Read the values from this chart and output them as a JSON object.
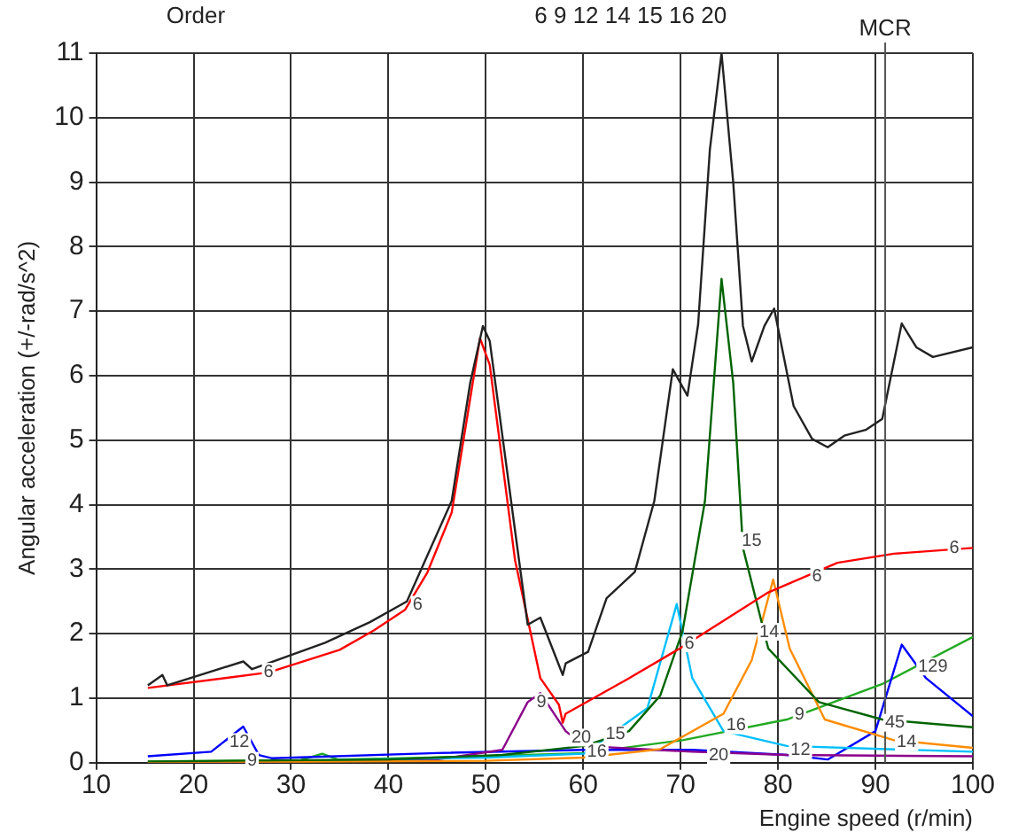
{
  "chart_data": {
    "type": "line",
    "xlabel": "Engine speed (r/min)",
    "ylabel": "Angular acceleration (+/-rad/s^2)",
    "xlim": [
      10,
      100
    ],
    "ylim": [
      0,
      11
    ],
    "xticks": [
      10,
      20,
      30,
      40,
      50,
      60,
      70,
      80,
      90,
      100
    ],
    "yticks": [
      0,
      1,
      2,
      3,
      4,
      5,
      6,
      7,
      8,
      9,
      10,
      11
    ],
    "grid": true,
    "legend": false,
    "marker": "none",
    "series": [
      {
        "color": "#222222",
        "x": [
          15.3,
          16.8,
          17.3,
          25.1,
          26.0,
          33.5,
          38.1,
          41.9,
          46.5,
          48.4,
          49.7,
          50.4,
          53.0,
          54.3,
          55.6,
          57.9,
          58.2,
          60.5,
          62.4,
          65.3,
          67.3,
          69.2,
          70.7,
          71.8,
          73.0,
          74.2,
          75.4,
          76.4,
          77.3,
          78.6,
          79.6,
          81.6,
          83.5,
          85.1,
          86.8,
          89.0,
          90.7,
          92.7,
          94.2,
          95.9,
          100
        ],
        "values": [
          1.2,
          1.36,
          1.2,
          1.57,
          1.45,
          1.86,
          2.18,
          2.5,
          4.06,
          5.89,
          6.77,
          6.54,
          3.6,
          2.14,
          2.25,
          1.36,
          1.54,
          1.72,
          2.55,
          2.96,
          4.06,
          6.1,
          5.69,
          6.8,
          9.5,
          11.0,
          9.0,
          6.77,
          6.22,
          6.77,
          7.04,
          5.53,
          5.02,
          4.89,
          5.07,
          5.16,
          5.33,
          6.81,
          6.44,
          6.29,
          6.44
        ]
      },
      {
        "color": "#ff0000",
        "x": [
          15.3,
          27.7,
          35,
          38.5,
          41.7,
          44,
          46.5,
          49.4,
          50.4,
          53.0,
          55.6,
          57.5,
          57.9,
          58.2,
          64.7,
          69.9,
          79.0,
          86.1,
          91.9,
          100
        ],
        "values": [
          1.16,
          1.4,
          1.75,
          2.05,
          2.37,
          2.95,
          3.88,
          6.58,
          6.17,
          3.14,
          1.31,
          0.9,
          0.62,
          0.76,
          1.31,
          1.77,
          2.64,
          3.1,
          3.24,
          3.33
        ]
      },
      {
        "color": "#006400",
        "x": [
          15.3,
          40,
          51.7,
          60.1,
          64.7,
          67.9,
          70.2,
          72.5,
          74.2,
          75.4,
          76.4,
          79.0,
          84.2,
          90.7,
          100
        ],
        "values": [
          0.02,
          0.05,
          0.12,
          0.26,
          0.49,
          1.04,
          2.04,
          4.06,
          7.5,
          5.89,
          3.33,
          1.77,
          0.94,
          0.67,
          0.55
        ]
      },
      {
        "color": "#ff8c00",
        "x": [
          15.3,
          50,
          60,
          67.9,
          74.4,
          77.3,
          79.5,
          81.2,
          84.8,
          91.9,
          100
        ],
        "values": [
          0.0,
          0.03,
          0.08,
          0.21,
          0.76,
          1.59,
          2.84,
          1.77,
          0.67,
          0.35,
          0.23
        ]
      },
      {
        "color": "#00bfff",
        "x": [
          30,
          50,
          60.1,
          66.6,
          69.6,
          71.2,
          74.4,
          80.9,
          100
        ],
        "values": [
          0.03,
          0.08,
          0.14,
          0.85,
          2.46,
          1.31,
          0.49,
          0.26,
          0.17
        ]
      },
      {
        "color": "#8b008b",
        "x": [
          15.3,
          45,
          51.7,
          54.3,
          55.6,
          58.2,
          60.1,
          71.2,
          80.9,
          100
        ],
        "values": [
          0.0,
          0.05,
          0.2,
          0.94,
          1.08,
          0.49,
          0.26,
          0.17,
          0.12,
          0.1
        ]
      },
      {
        "color": "#0000ff",
        "x": [
          15.3,
          21.8,
          25.1,
          26.7,
          28.0,
          45,
          60.1,
          71.2,
          80.9,
          85.1,
          90.0,
          92.7,
          95.2,
          100
        ],
        "values": [
          0.1,
          0.17,
          0.56,
          0.12,
          0.07,
          0.15,
          0.2,
          0.2,
          0.12,
          0.05,
          0.49,
          1.83,
          1.31,
          0.72
        ]
      },
      {
        "color": "#22aa22",
        "x": [
          15.3,
          31,
          33.2,
          34.8,
          50,
          60.1,
          70.2,
          80.9,
          90.7,
          100
        ],
        "values": [
          0.02,
          0.04,
          0.14,
          0.05,
          0.1,
          0.15,
          0.35,
          0.67,
          1.22,
          1.95
        ]
      }
    ],
    "ref_lines": [
      {
        "axis": "x",
        "value": 91,
        "label": "MCR",
        "color": "#555555"
      }
    ],
    "annotations": [
      "Order",
      "6 9 12 14 15 16 20",
      {
        "text": "6",
        "x": 27.7,
        "y": 1.41
      },
      {
        "text": "6",
        "x": 43.0,
        "y": 2.45
      },
      {
        "text": "12",
        "x": 24.7,
        "y": 0.32
      },
      {
        "text": "9",
        "x": 26.0,
        "y": 0.03
      },
      {
        "text": "9",
        "x": 55.7,
        "y": 0.94
      },
      {
        "text": "20",
        "x": 59.8,
        "y": 0.39
      },
      {
        "text": "15",
        "x": 63.3,
        "y": 0.44
      },
      {
        "text": "16",
        "x": 61.4,
        "y": 0.17
      },
      {
        "text": "6",
        "x": 70.9,
        "y": 1.85
      },
      {
        "text": "15",
        "x": 77.3,
        "y": 3.44
      },
      {
        "text": "6",
        "x": 84.0,
        "y": 2.89
      },
      {
        "text": "6",
        "x": 98.1,
        "y": 3.33
      },
      {
        "text": "14",
        "x": 79.1,
        "y": 2.03
      },
      {
        "text": "16",
        "x": 75.7,
        "y": 0.58
      },
      {
        "text": "9",
        "x": 82.2,
        "y": 0.74
      },
      {
        "text": "20",
        "x": 73.9,
        "y": 0.12
      },
      {
        "text": "12",
        "x": 82.3,
        "y": 0.2
      },
      {
        "text": "45",
        "x": 92.0,
        "y": 0.62
      },
      {
        "text": "14",
        "x": 93.2,
        "y": 0.32
      },
      {
        "text": "129",
        "x": 95.9,
        "y": 1.49
      }
    ]
  }
}
